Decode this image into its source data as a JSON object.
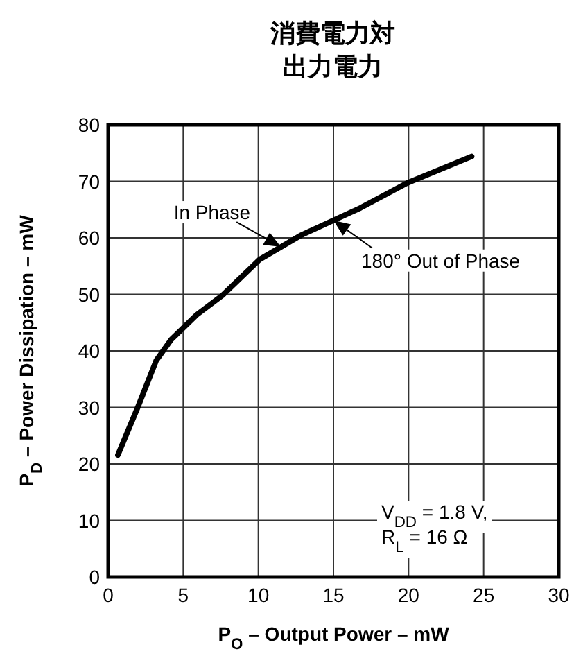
{
  "chart_data": {
    "type": "line",
    "title": "消費電力対出力電力",
    "xlabel": "P$_{O}$ – Output Power – mW",
    "ylabel": "P$_{D}$ – Power Dissipation – mW",
    "xlim": [
      0,
      30
    ],
    "ylim": [
      0,
      80
    ],
    "xticks": [
      0,
      5,
      10,
      15,
      20,
      25,
      30
    ],
    "yticks": [
      0,
      10,
      20,
      30,
      40,
      50,
      60,
      70,
      80
    ],
    "grid": true,
    "marker": "none",
    "line_style": "solid",
    "series": [
      {
        "color": "#000000",
        "x": [
          0.65,
          2.0,
          3.2,
          4.2,
          5.9,
          7.6,
          10.1,
          12.8,
          16.8,
          19.9,
          24.2
        ],
        "values": [
          21.6,
          30.2,
          38.3,
          42,
          46.4,
          49.8,
          56.2,
          60.4,
          65.3,
          69.7,
          74.4
        ]
      }
    ],
    "annotations": [
      {
        "text": "In Phase",
        "x": 11.5,
        "y": 58.4
      },
      {
        "text": "180° Out of Phase",
        "x": 15,
        "y": 63.1
      },
      "V$_{DD}$ = 1.8 V,",
      "R$_{L}$ = 16 Ω"
    ]
  }
}
